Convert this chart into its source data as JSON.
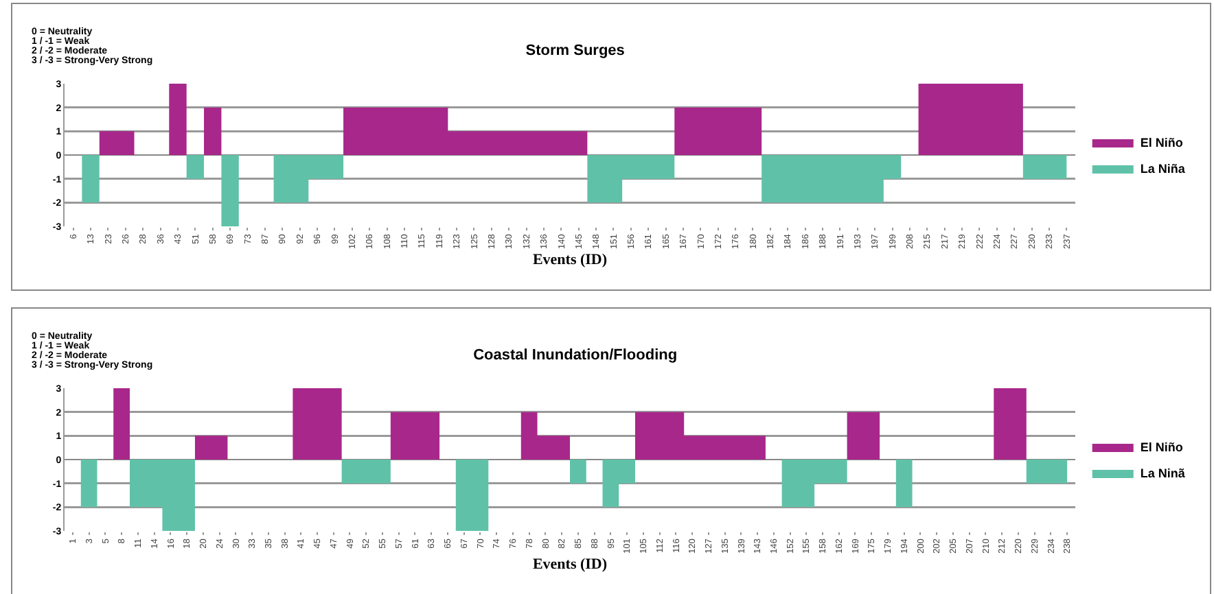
{
  "chart_data": [
    {
      "type": "area",
      "title": "Storm Surges",
      "xlabel": "Events (ID)",
      "annotations": [
        "0 = Neutrality",
        "1 / -1 = Weak",
        "2 / -2 = Moderate",
        "3 / -3 = Strong-Very Strong"
      ],
      "categories": [
        "6",
        "13",
        "23",
        "26",
        "28",
        "36",
        "43",
        "51",
        "58",
        "69",
        "73",
        "87",
        "90",
        "92",
        "96",
        "99",
        "102",
        "106",
        "108",
        "110",
        "115",
        "119",
        "123",
        "125",
        "128",
        "130",
        "132",
        "136",
        "140",
        "145",
        "148",
        "151",
        "156",
        "161",
        "165",
        "167",
        "170",
        "172",
        "176",
        "180",
        "182",
        "184",
        "186",
        "188",
        "191",
        "193",
        "197",
        "199",
        "208",
        "215",
        "217",
        "219",
        "222",
        "224",
        "227",
        "230",
        "233",
        "237"
      ],
      "series": [
        {
          "name": "El Niño",
          "color": "#a8278a",
          "values": [
            0,
            0,
            1,
            1,
            0,
            0,
            3,
            0,
            2,
            0,
            0,
            0,
            0,
            0,
            0,
            0,
            2,
            2,
            2,
            2,
            2,
            2,
            1,
            1,
            1,
            1,
            1,
            1,
            1,
            1,
            0,
            0,
            0,
            0,
            0,
            2,
            2,
            2,
            2,
            2,
            0,
            0,
            0,
            0,
            0,
            0,
            0,
            0,
            0,
            3,
            3,
            3,
            3,
            3,
            3,
            0,
            0,
            0
          ]
        },
        {
          "name": "La Niña",
          "color": "#5fc2a8",
          "values": [
            0,
            -2,
            0,
            0,
            0,
            0,
            0,
            -1,
            0,
            -3,
            0,
            0,
            -2,
            -2,
            -1,
            -1,
            0,
            0,
            0,
            0,
            0,
            0,
            0,
            0,
            0,
            0,
            0,
            0,
            0,
            0,
            -2,
            -2,
            -1,
            -1,
            -1,
            0,
            0,
            0,
            0,
            0,
            -2,
            -2,
            -2,
            -2,
            -2,
            -2,
            -2,
            -1,
            0,
            0,
            0,
            0,
            0,
            0,
            0,
            -1,
            -1,
            -1
          ]
        }
      ],
      "ylim": [
        -3,
        3
      ],
      "yticks": [
        -3,
        -2,
        -1,
        0,
        1,
        2,
        3
      ],
      "grid": "y",
      "legend": "right"
    },
    {
      "type": "area",
      "title": "Coastal Inundation/Flooding",
      "xlabel": "Events (ID)",
      "annotations": [
        "0 = Neutrality",
        "1 / -1 = Weak",
        "2 / -2 = Moderate",
        "3 / -3 = Strong-Very Strong"
      ],
      "categories": [
        "1",
        "3",
        "5",
        "8",
        "11",
        "14",
        "16",
        "18",
        "20",
        "24",
        "30",
        "33",
        "35",
        "38",
        "41",
        "45",
        "47",
        "49",
        "52",
        "55",
        "57",
        "61",
        "63",
        "65",
        "67",
        "70",
        "74",
        "76",
        "78",
        "80",
        "82",
        "85",
        "88",
        "95",
        "101",
        "105",
        "112",
        "116",
        "120",
        "127",
        "135",
        "139",
        "143",
        "146",
        "152",
        "155",
        "158",
        "162",
        "169",
        "175",
        "179",
        "194",
        "200",
        "202",
        "205",
        "207",
        "210",
        "212",
        "220",
        "229",
        "234",
        "238"
      ],
      "series": [
        {
          "name": "El Niño",
          "color": "#a8278a",
          "values": [
            0,
            0,
            0,
            3,
            0,
            0,
            0,
            0,
            1,
            1,
            0,
            0,
            0,
            0,
            3,
            3,
            3,
            0,
            0,
            0,
            2,
            2,
            2,
            0,
            0,
            0,
            0,
            0,
            2,
            1,
            1,
            0,
            0,
            0,
            0,
            2,
            2,
            2,
            1,
            1,
            1,
            1,
            1,
            0,
            0,
            0,
            0,
            0,
            2,
            2,
            0,
            0,
            0,
            0,
            0,
            0,
            0,
            3,
            3,
            0,
            0,
            0
          ]
        },
        {
          "name": "La Ninã",
          "color": "#5fc2a8",
          "values": [
            0,
            -2,
            0,
            0,
            -2,
            -2,
            -3,
            -3,
            0,
            0,
            0,
            0,
            0,
            0,
            0,
            0,
            0,
            -1,
            -1,
            -1,
            0,
            0,
            0,
            0,
            -3,
            -3,
            0,
            0,
            0,
            0,
            0,
            -1,
            0,
            -2,
            -1,
            0,
            0,
            0,
            0,
            0,
            0,
            0,
            0,
            0,
            -2,
            -2,
            -1,
            -1,
            0,
            0,
            0,
            -2,
            0,
            0,
            0,
            0,
            0,
            0,
            0,
            -1,
            -1,
            -1
          ]
        }
      ],
      "ylim": [
        -3,
        3
      ],
      "yticks": [
        -3,
        -2,
        -1,
        0,
        1,
        2,
        3
      ],
      "grid": "y",
      "legend": "right"
    }
  ]
}
